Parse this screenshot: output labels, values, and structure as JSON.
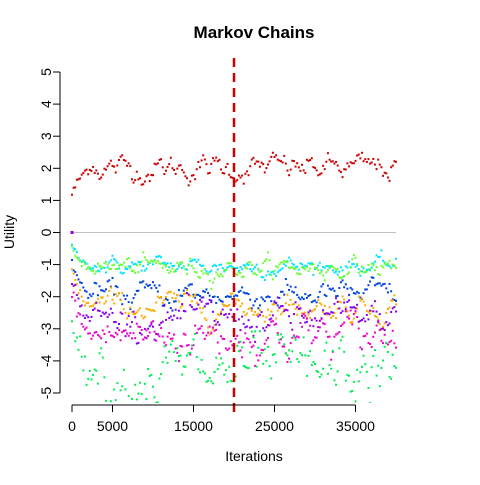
{
  "chart_data": {
    "type": "scatter",
    "title": "Markov Chains",
    "xlabel": "Iterations",
    "ylabel": "Utility",
    "xlim": [
      0,
      40000
    ],
    "ylim": [
      -5,
      5
    ],
    "x_ticks": [
      0,
      5000,
      15000,
      25000,
      35000
    ],
    "y_ticks": [
      -5,
      -4,
      -3,
      -2,
      -1,
      0,
      1,
      2,
      3,
      4,
      5
    ],
    "x_tick_labels": [
      "0",
      "5000",
      "15000",
      "25000",
      "35000"
    ],
    "y_tick_labels": [
      "-5",
      "-4",
      "-3",
      "-2",
      "-1",
      "0",
      "1",
      "2",
      "3",
      "4",
      "5"
    ],
    "reference_hline": {
      "y": 0,
      "color": "#c0c0c0"
    },
    "reference_vline": {
      "x": 20000,
      "color": "#cc0000",
      "style": "dashed"
    },
    "grid": false,
    "legend": "none",
    "start_point": {
      "x": 0,
      "y": 0,
      "color": "#9900cc"
    },
    "iteration_step": 200,
    "series": [
      {
        "color": "#cc0000",
        "mean": 2.0,
        "spread": 0.15,
        "start": 1.2
      },
      {
        "color": "#00e5ff",
        "mean": -1.05,
        "spread": 0.1,
        "start": -0.4
      },
      {
        "color": "#66ff33",
        "mean": -1.1,
        "spread": 0.12,
        "start": -0.5
      },
      {
        "color": "#0044dd",
        "mean": -1.95,
        "spread": 0.15,
        "start": -0.9
      },
      {
        "color": "#ffaa00",
        "mean": -2.3,
        "spread": 0.15,
        "start": -1.2
      },
      {
        "color": "#8800ee",
        "mean": -2.7,
        "spread": 0.2,
        "start": -1.4
      },
      {
        "color": "#ee00cc",
        "mean": -3.2,
        "spread": 0.25,
        "start": -1.8
      },
      {
        "color": "#00ee55",
        "mean": -4.4,
        "spread": 0.4,
        "start": -2.5
      }
    ]
  }
}
